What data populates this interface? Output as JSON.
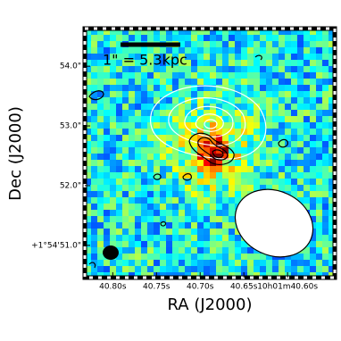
{
  "chart_data": {
    "type": "image",
    "xlabel": "RA (J2000)",
    "ylabel": "Dec (J2000)",
    "annotation": "1\" = 5.3kpc",
    "xlim": [
      40.832,
      40.546
    ],
    "xticks": [
      {
        "value": 40.8,
        "label": "40.80s"
      },
      {
        "value": 40.75,
        "label": "40.75s"
      },
      {
        "value": 40.7,
        "label": "40.70s"
      },
      {
        "value": 40.65,
        "label": "40.65s"
      },
      {
        "value": 40.6,
        "label": "10h01m40.60s"
      }
    ],
    "ylim": [
      50.46,
      54.63
    ],
    "yticks": [
      {
        "value": 51.0,
        "label": "+1°54'51.0\""
      },
      {
        "value": 52.0,
        "label": "52.0\""
      },
      {
        "value": 53.0,
        "label": "53.0\""
      },
      {
        "value": 54.0,
        "label": "54.0\""
      }
    ]
  }
}
